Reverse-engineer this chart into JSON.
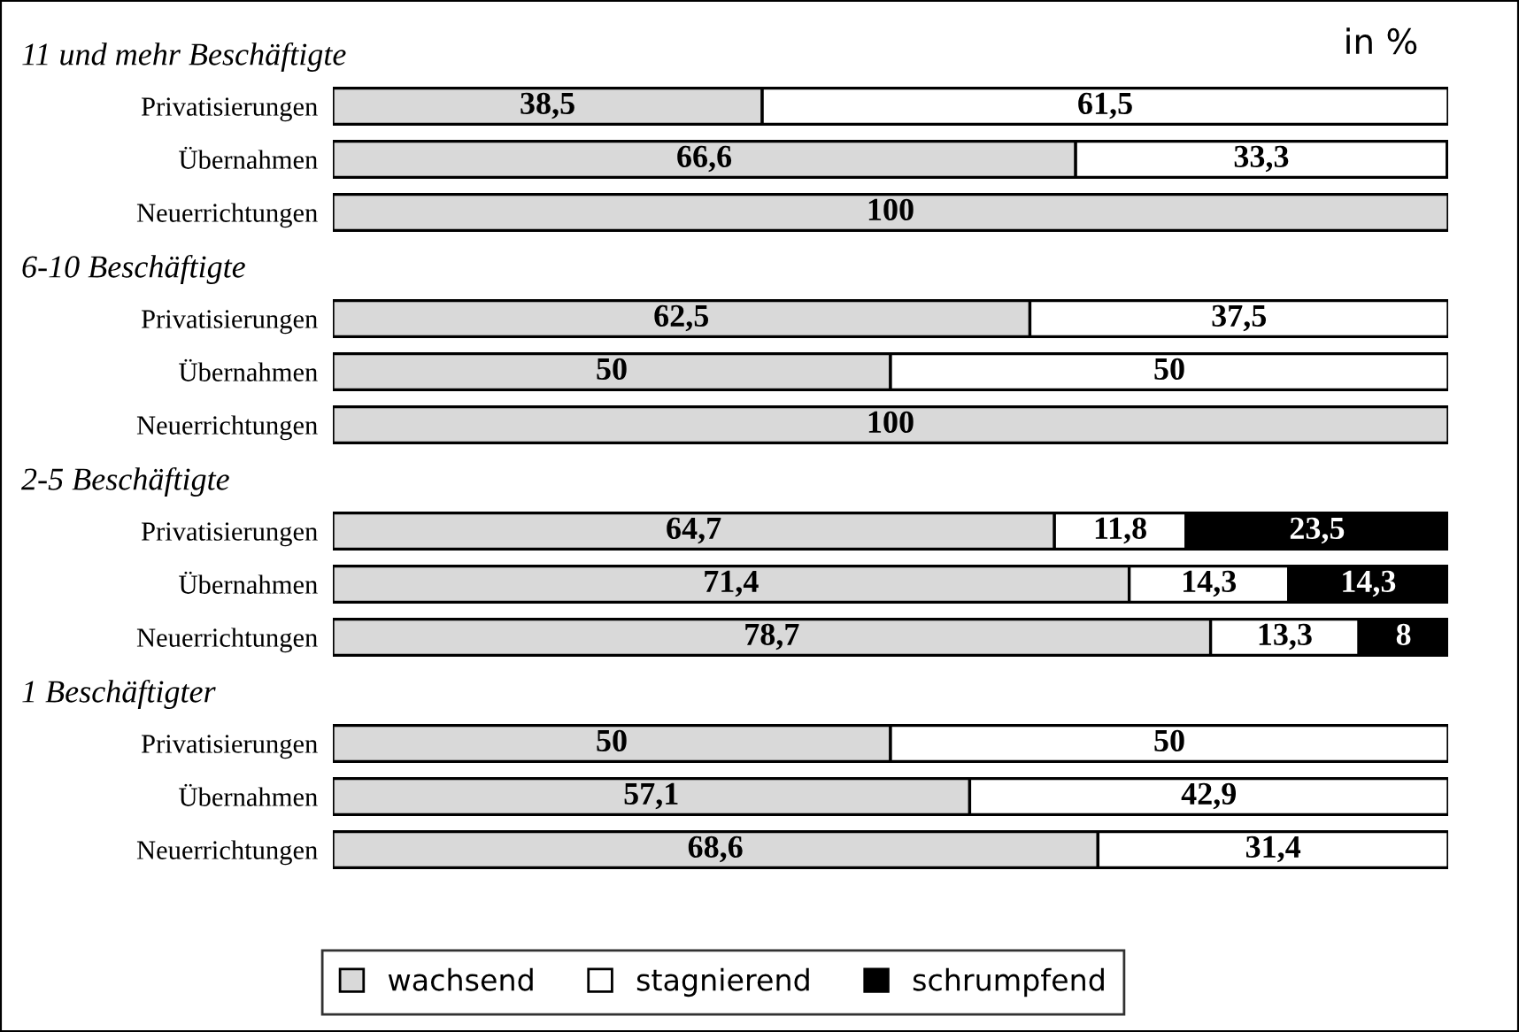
{
  "chart_data": [
    {
      "type": "bar",
      "orientation": "horizontal",
      "stacked": true,
      "title": "11 und mehr Beschäftigte",
      "annotations": [
        "in %"
      ],
      "categories": [
        "Privatisierungen",
        "Übernahmen",
        "Neuerrichtungen"
      ],
      "xlim": [
        0,
        100
      ],
      "tick_labels": "y",
      "grid": false,
      "legend": false,
      "series": [
        {
          "color": "#d9d9d9",
          "values": [
            38.5,
            66.6,
            100
          ],
          "value_labels": [
            "38,5",
            "66,6",
            "100"
          ]
        },
        {
          "color": "#ffffff",
          "values": [
            61.5,
            33.3,
            null
          ],
          "value_labels": [
            "61,5",
            "33,3",
            null
          ]
        }
      ]
    },
    {
      "type": "bar",
      "orientation": "horizontal",
      "stacked": true,
      "title": "6-10 Beschäftigte",
      "categories": [
        "Privatisierungen",
        "Übernahmen",
        "Neuerrichtungen"
      ],
      "xlim": [
        0,
        100
      ],
      "tick_labels": "y",
      "grid": false,
      "legend": false,
      "series": [
        {
          "color": "#d9d9d9",
          "values": [
            62.5,
            50,
            100
          ],
          "value_labels": [
            "62,5",
            "50",
            "100"
          ]
        },
        {
          "color": "#ffffff",
          "values": [
            37.5,
            50,
            null
          ],
          "value_labels": [
            "37,5",
            "50",
            null
          ]
        }
      ]
    },
    {
      "type": "bar",
      "orientation": "horizontal",
      "stacked": true,
      "title": "2-5 Beschäftigte",
      "categories": [
        "Privatisierungen",
        "Übernahmen",
        "Neuerrichtungen"
      ],
      "xlim": [
        0,
        100
      ],
      "tick_labels": "y",
      "grid": false,
      "legend": false,
      "series": [
        {
          "color": "#d9d9d9",
          "values": [
            64.7,
            71.4,
            78.7
          ],
          "value_labels": [
            "64,7",
            "71,4",
            "78,7"
          ]
        },
        {
          "color": "#ffffff",
          "values": [
            11.8,
            14.3,
            13.3
          ],
          "value_labels": [
            "11,8",
            "14,3",
            "13,3"
          ]
        },
        {
          "color": "#000000",
          "values": [
            23.5,
            14.3,
            8
          ],
          "value_labels": [
            "23,5",
            "14,3",
            "8"
          ]
        }
      ]
    },
    {
      "type": "bar",
      "orientation": "horizontal",
      "stacked": true,
      "title": "1 Beschäftigter",
      "categories": [
        "Privatisierungen",
        "Übernahmen",
        "Neuerrichtungen"
      ],
      "xlim": [
        0,
        100
      ],
      "tick_labels": "y",
      "grid": false,
      "legend": "bottom",
      "series": [
        {
          "name": "wachsend",
          "color": "#d9d9d9",
          "values": [
            50,
            57.1,
            68.6
          ],
          "value_labels": [
            "50",
            "57,1",
            "68,6"
          ]
        },
        {
          "name": "stagnierend",
          "color": "#ffffff",
          "values": [
            50,
            42.9,
            31.4
          ],
          "value_labels": [
            "50",
            "42,9",
            "31,4"
          ]
        },
        {
          "name": "schrumpfend",
          "color": "#000000",
          "values": [
            null,
            null,
            null
          ]
        }
      ]
    }
  ]
}
